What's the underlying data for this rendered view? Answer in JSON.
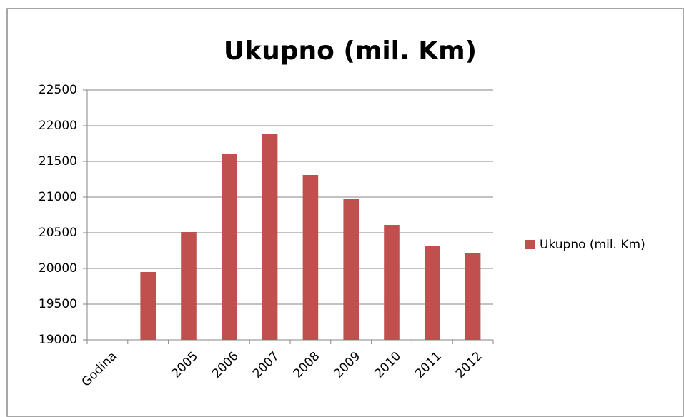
{
  "chart_data": {
    "type": "bar",
    "title": "Ukupno (mil. Km)",
    "categories": [
      "Godina",
      null,
      "2005",
      "2006",
      "2007",
      "2008",
      "2009",
      "2010",
      "2011",
      "2012"
    ],
    "series": [
      {
        "name": "Ukupno (mil. Km)",
        "color": "#c0504d",
        "values": [
          null,
          19950,
          20510,
          21610,
          21880,
          21310,
          20970,
          20610,
          20310,
          20210
        ]
      }
    ],
    "ylim": [
      19000,
      22500
    ],
    "yticks": [
      19000,
      19500,
      20000,
      20500,
      21000,
      21500,
      22000,
      22500
    ],
    "grid": true,
    "legend": "right"
  }
}
